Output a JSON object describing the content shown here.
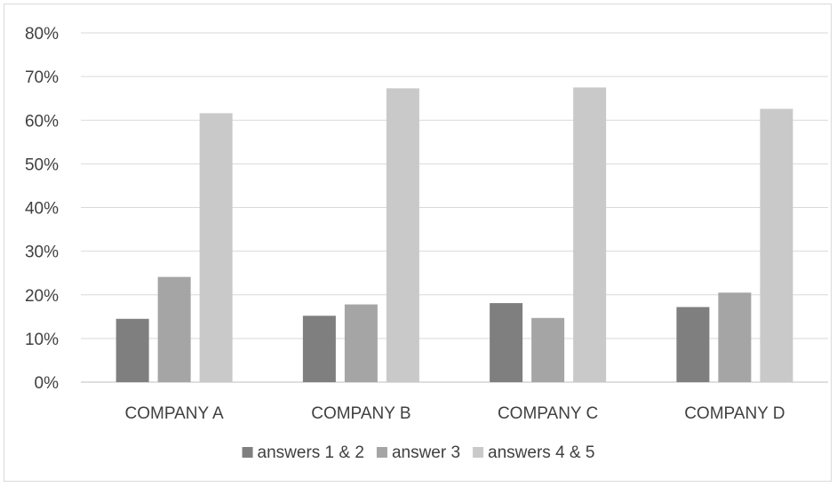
{
  "chart_data": {
    "type": "bar",
    "title": "",
    "xlabel": "",
    "ylabel": "",
    "categories": [
      "COMPANY A",
      "COMPANY B",
      "COMPANY C",
      "COMPANY D"
    ],
    "series": [
      {
        "name": "answers 1 & 2",
        "color": "#7f7f7f",
        "values": [
          0.145,
          0.152,
          0.181,
          0.172
        ]
      },
      {
        "name": "answer 3",
        "color": "#a5a5a5",
        "values": [
          0.241,
          0.178,
          0.147,
          0.205
        ]
      },
      {
        "name": "answers 4 & 5",
        "color": "#c9c9c9",
        "values": [
          0.616,
          0.673,
          0.675,
          0.626
        ]
      }
    ],
    "ylim": [
      0,
      0.8
    ],
    "yticks": [
      "0%",
      "10%",
      "20%",
      "30%",
      "40%",
      "50%",
      "60%",
      "70%",
      "80%"
    ],
    "grid": true,
    "legend_position": "bottom"
  }
}
